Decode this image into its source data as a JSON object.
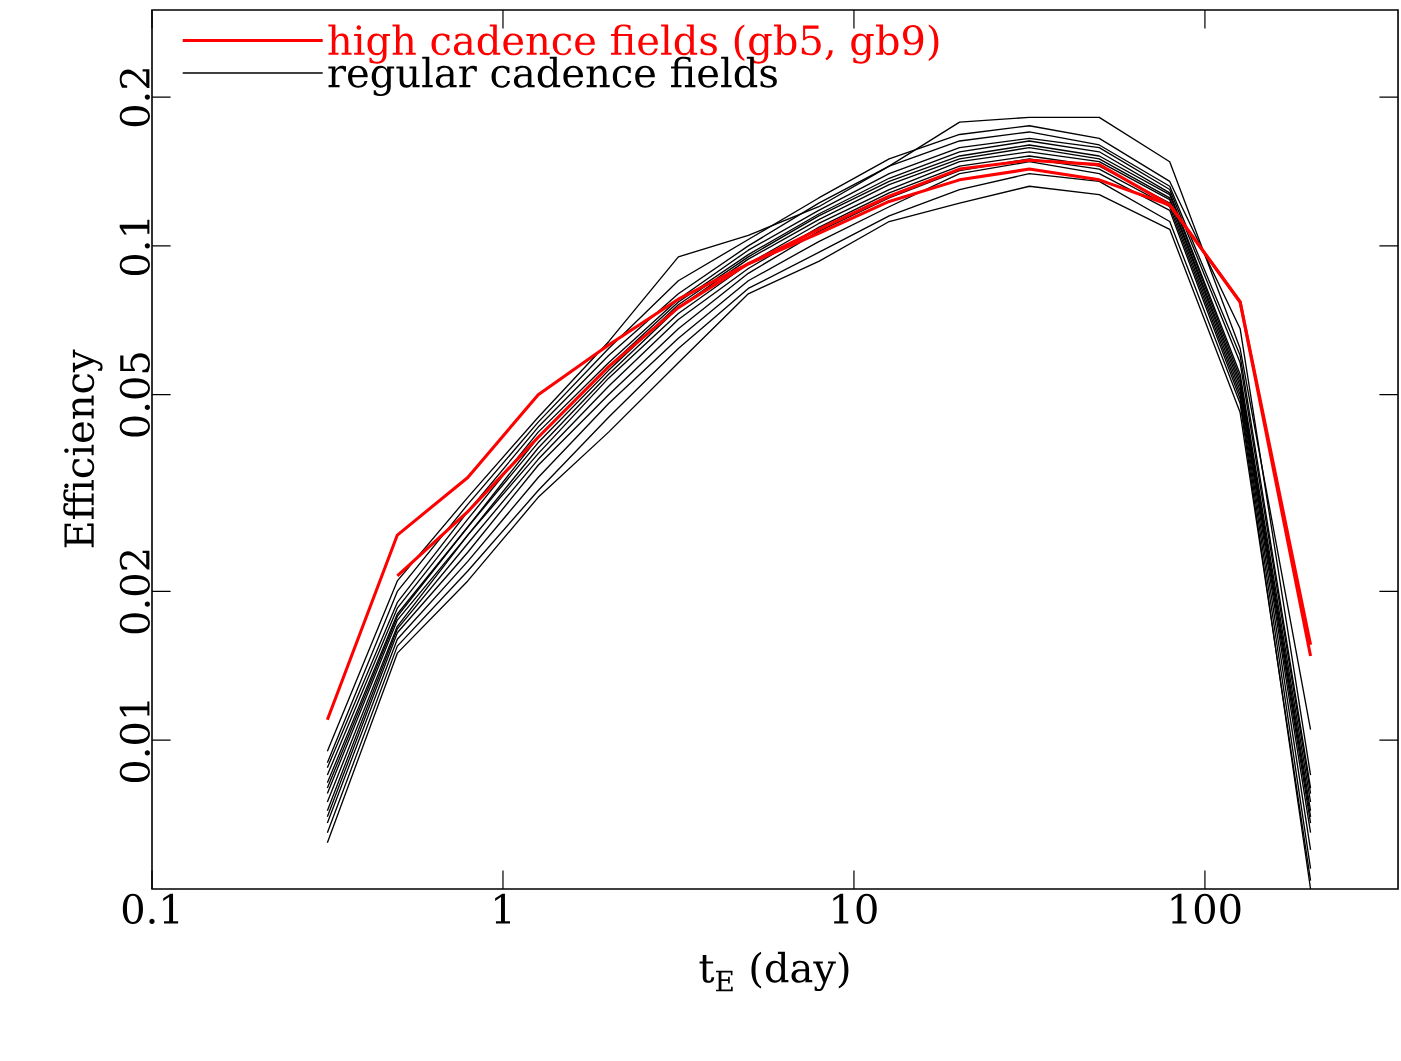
{
  "chart_data": {
    "type": "line",
    "xlabel": "t$_{E}$ (day)",
    "ylabel": "Efficiency",
    "log": "xy",
    "legend": "top left",
    "xlim": [
      0.1,
      355
    ],
    "ylim": [
      0.005,
      0.3
    ],
    "xticks": [
      0.1,
      1,
      10,
      100
    ],
    "yticks": [
      0.01,
      0.02,
      0.05,
      0.1,
      0.2
    ],
    "x": [
      0.316,
      0.5,
      0.794,
      1.26,
      2,
      3.16,
      5,
      7.94,
      12.6,
      20,
      31.6,
      50,
      79.4,
      126,
      200
    ],
    "series": [
      {
        "name": "regular cadence fields",
        "color": "#000000",
        "values": [
          0.0095,
          0.021,
          0.031,
          0.045,
          0.064,
          0.095,
          0.105,
          0.12,
          0.145,
          0.178,
          0.182,
          0.182,
          0.148,
          0.062,
          0.0105
        ]
      },
      {
        "color": "#000000",
        "values": [
          0.009,
          0.02,
          0.03,
          0.044,
          0.062,
          0.085,
          0.103,
          0.125,
          0.15,
          0.168,
          0.175,
          0.165,
          0.135,
          0.068,
          0.0085
        ]
      },
      {
        "color": "#000000",
        "values": [
          0.0088,
          0.019,
          0.029,
          0.043,
          0.06,
          0.08,
          0.1,
          0.122,
          0.145,
          0.163,
          0.17,
          0.16,
          0.132,
          0.06,
          0.008
        ]
      },
      {
        "color": "#000000",
        "values": [
          0.0085,
          0.0185,
          0.028,
          0.042,
          0.058,
          0.078,
          0.098,
          0.118,
          0.14,
          0.158,
          0.165,
          0.158,
          0.13,
          0.058,
          0.0078
        ]
      },
      {
        "color": "#000000",
        "values": [
          0.0082,
          0.018,
          0.027,
          0.041,
          0.057,
          0.077,
          0.096,
          0.116,
          0.137,
          0.155,
          0.163,
          0.155,
          0.128,
          0.055,
          0.0075
        ]
      },
      {
        "color": "#000000",
        "values": [
          0.008,
          0.0178,
          0.027,
          0.04,
          0.056,
          0.076,
          0.095,
          0.115,
          0.135,
          0.152,
          0.16,
          0.152,
          0.127,
          0.054,
          0.0072
        ]
      },
      {
        "color": "#000000",
        "values": [
          0.0078,
          0.0175,
          0.026,
          0.039,
          0.055,
          0.075,
          0.094,
          0.113,
          0.133,
          0.15,
          0.158,
          0.15,
          0.125,
          0.053,
          0.007
        ]
      },
      {
        "color": "#000000",
        "values": [
          0.0075,
          0.017,
          0.026,
          0.038,
          0.054,
          0.073,
          0.092,
          0.111,
          0.13,
          0.148,
          0.155,
          0.148,
          0.124,
          0.052,
          0.0068
        ]
      },
      {
        "color": "#000000",
        "values": [
          0.0072,
          0.0168,
          0.025,
          0.037,
          0.052,
          0.071,
          0.09,
          0.109,
          0.128,
          0.145,
          0.152,
          0.145,
          0.122,
          0.051,
          0.0065
        ]
      },
      {
        "color": "#000000",
        "values": [
          0.007,
          0.0165,
          0.024,
          0.036,
          0.05,
          0.068,
          0.088,
          0.107,
          0.125,
          0.142,
          0.15,
          0.143,
          0.12,
          0.05,
          0.006
        ]
      },
      {
        "color": "#000000",
        "values": [
          0.0068,
          0.016,
          0.023,
          0.034,
          0.048,
          0.065,
          0.085,
          0.102,
          0.12,
          0.14,
          0.148,
          0.14,
          0.118,
          0.049,
          0.0055
        ]
      },
      {
        "color": "#000000",
        "values": [
          0.0065,
          0.0155,
          0.022,
          0.032,
          0.045,
          0.062,
          0.082,
          0.097,
          0.115,
          0.13,
          0.14,
          0.135,
          0.112,
          0.048,
          0.005
        ]
      },
      {
        "color": "#000000",
        "values": [
          0.0062,
          0.015,
          0.021,
          0.031,
          0.042,
          0.058,
          0.08,
          0.093,
          0.112,
          0.122,
          0.132,
          0.127,
          0.108,
          0.046,
          0.0052
        ]
      },
      {
        "name": "high cadence fields (gb5, gb9)",
        "color": "#ff0000",
        "values": [
          0.011,
          0.026,
          0.034,
          0.05,
          0.063,
          0.078,
          0.092,
          0.108,
          0.126,
          0.143,
          0.149,
          0.146,
          0.121,
          0.077,
          0.0156
        ]
      },
      {
        "color": "#ff0000",
        "values": [
          null,
          0.0215,
          0.029,
          0.041,
          0.057,
          0.075,
          0.092,
          0.106,
          0.123,
          0.136,
          0.143,
          0.136,
          0.121,
          0.077,
          0.0148
        ]
      }
    ]
  }
}
